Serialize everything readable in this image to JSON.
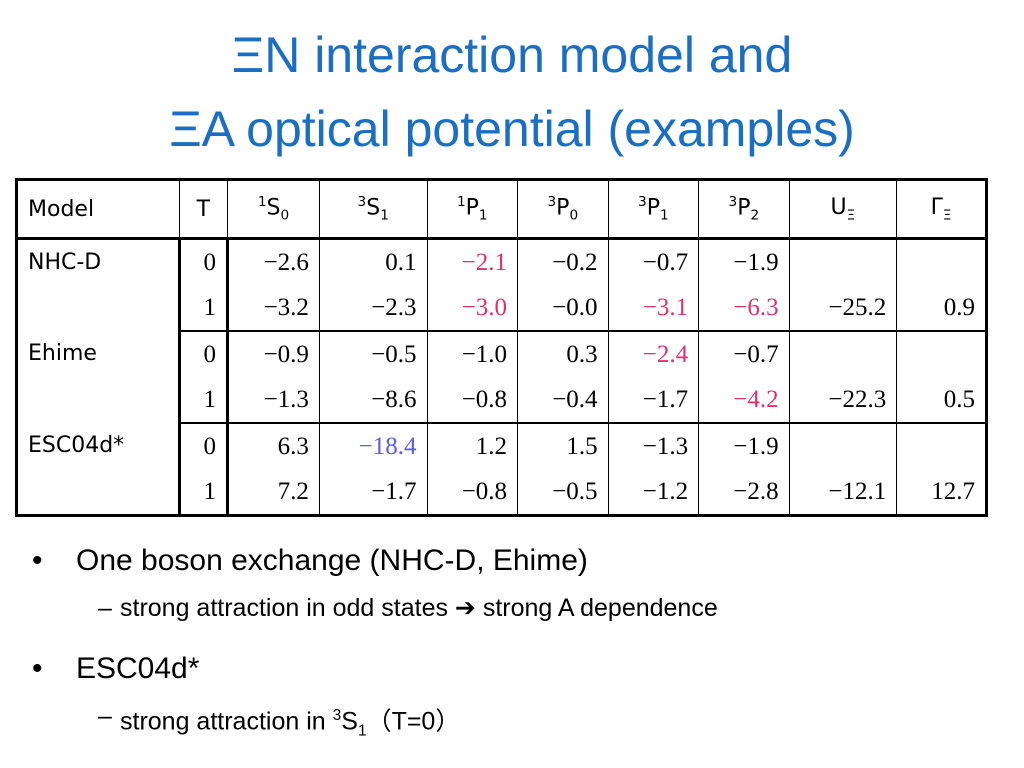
{
  "title": {
    "lines": [
      "ΞN interaction model and",
      "ΞA optical potential (examples)"
    ]
  },
  "table": {
    "header": [
      {
        "text": "Model"
      },
      {
        "text": "T"
      },
      {
        "sup": "1",
        "base": "S",
        "sub": "0"
      },
      {
        "sup": "3",
        "base": "S",
        "sub": "1"
      },
      {
        "sup": "1",
        "base": "P",
        "sub": "1"
      },
      {
        "sup": "3",
        "base": "P",
        "sub": "0"
      },
      {
        "sup": "3",
        "base": "P",
        "sub": "1"
      },
      {
        "sup": "3",
        "base": "P",
        "sub": "2"
      },
      {
        "base": "U",
        "sub": "Ξ"
      },
      {
        "base": "Γ",
        "sub": "Ξ"
      }
    ],
    "groups": [
      {
        "model": "NHC-D",
        "rows": [
          {
            "T": "0",
            "values": [
              "−2.6",
              "0.1",
              {
                "text": "−2.1",
                "color": "#e0306a"
              },
              "−0.2",
              "−0.7",
              "−1.9"
            ]
          },
          {
            "T": "1",
            "values": [
              "−3.2",
              "−2.3",
              {
                "text": "−3.0",
                "color": "#e0306a"
              },
              "−0.0",
              {
                "text": "−3.1",
                "color": "#e0306a"
              },
              {
                "text": "−6.3",
                "color": "#e0306a"
              }
            ],
            "U": "−25.2",
            "Gamma": "0.9"
          }
        ]
      },
      {
        "model": "Ehime",
        "rows": [
          {
            "T": "0",
            "values": [
              "−0.9",
              "−0.5",
              "−1.0",
              "0.3",
              {
                "text": "−2.4",
                "color": "#e0306a"
              },
              "−0.7"
            ]
          },
          {
            "T": "1",
            "values": [
              "−1.3",
              "−8.6",
              "−0.8",
              "−0.4",
              "−1.7",
              {
                "text": "−4.2",
                "color": "#e0306a"
              }
            ],
            "U": "−22.3",
            "Gamma": "0.5"
          }
        ]
      },
      {
        "model": "ESC04d*",
        "rows": [
          {
            "T": "0",
            "values": [
              "6.3",
              {
                "text": "−18.4",
                "color": "#5a5af0"
              },
              "1.2",
              "1.5",
              "−1.3",
              "−1.9"
            ]
          },
          {
            "T": "1",
            "values": [
              "7.2",
              "−1.7",
              "−0.8",
              "−0.5",
              "−1.2",
              "−2.8"
            ],
            "U": "−12.1",
            "Gamma": "12.7"
          }
        ]
      }
    ]
  },
  "bullets": [
    {
      "text": "One boson exchange (NHC-D, Ehime)",
      "sub": {
        "before": "strong attraction in odd states",
        "after": "strong A dependence"
      }
    },
    {
      "text": "ESC04d*",
      "sub": {
        "before": "strong attraction in ",
        "sup": "3",
        "base": "S",
        "subscript": "1",
        "after": "（T=0）"
      }
    }
  ]
}
